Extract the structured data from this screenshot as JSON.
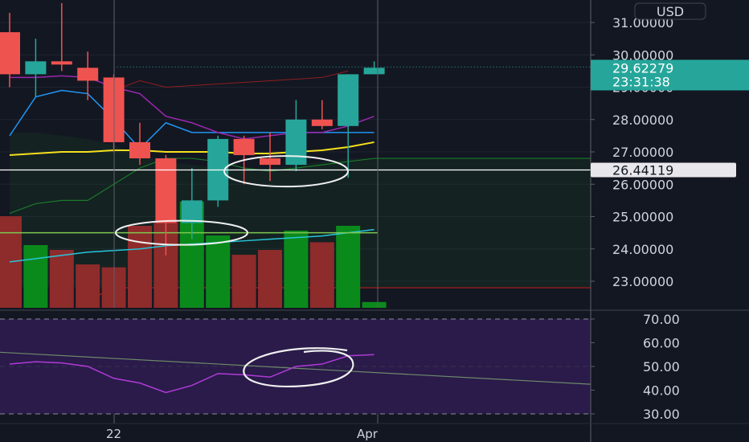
{
  "currency_label": "USD",
  "current_price_label": "29.62279",
  "countdown_label": "23:31:38",
  "crosshair_price_label": "26.44119",
  "colors": {
    "background": "#131722",
    "up": "#26a69a",
    "down": "#ef5350",
    "volume_up": "#0b8a1c",
    "volume_down": "#8e2b2b",
    "ma_yellow": "#f5e01e",
    "ma_cyan": "#26c6da",
    "ma_blue": "#2196f3",
    "ma_purple": "#9c27b0",
    "rsi_line": "#b03ad6",
    "rsi_band": "#2a1b4a"
  },
  "chart_data": [
    {
      "type": "candlestick",
      "y_axis_ticks": [
        31.0,
        30.0,
        29.0,
        28.0,
        27.0,
        26.0,
        25.0,
        24.0,
        23.0
      ],
      "y_axis_tick_labels": [
        "31.00000",
        "30.00000",
        "29.00000",
        "28.00000",
        "27.00000",
        "26.00000",
        "25.00000",
        "24.00000",
        "23.00000"
      ],
      "ylim": [
        22.2,
        31.6
      ],
      "x_axis_labels": [
        "22",
        "Apr"
      ],
      "current_price": 29.62279,
      "crosshair_price": 26.44119,
      "horizontal_level": 24.5,
      "candles": [
        {
          "open": 30.7,
          "high": 31.3,
          "low": 29.0,
          "close": 29.4
        },
        {
          "open": 29.4,
          "high": 30.5,
          "low": 28.7,
          "close": 29.8
        },
        {
          "open": 29.8,
          "high": 31.6,
          "low": 29.5,
          "close": 29.7
        },
        {
          "open": 29.6,
          "high": 30.1,
          "low": 28.6,
          "close": 29.2
        },
        {
          "open": 29.3,
          "high": 29.4,
          "low": 27.0,
          "close": 27.3
        },
        {
          "open": 27.3,
          "high": 27.9,
          "low": 26.6,
          "close": 26.8
        },
        {
          "open": 26.8,
          "high": 26.9,
          "low": 23.8,
          "close": 24.8
        },
        {
          "open": 24.8,
          "high": 26.5,
          "low": 24.3,
          "close": 25.5
        },
        {
          "open": 25.5,
          "high": 27.5,
          "low": 25.3,
          "close": 27.4
        },
        {
          "open": 27.4,
          "high": 27.5,
          "low": 26.0,
          "close": 26.9
        },
        {
          "open": 26.8,
          "high": 27.6,
          "low": 26.1,
          "close": 26.6
        },
        {
          "open": 26.6,
          "high": 28.6,
          "low": 26.4,
          "close": 28.0
        },
        {
          "open": 28.0,
          "high": 28.6,
          "low": 27.7,
          "close": 27.8
        },
        {
          "open": 27.8,
          "high": 29.4,
          "low": 26.2,
          "close": 29.4
        },
        {
          "open": 29.4,
          "high": 29.8,
          "low": 29.4,
          "close": 29.6
        }
      ],
      "volumes": [
        95,
        65,
        60,
        45,
        42,
        85,
        90,
        110,
        75,
        55,
        60,
        80,
        68,
        85,
        6
      ],
      "moving_averages": [
        {
          "color": "yellow",
          "values": [
            26.9,
            26.95,
            27.0,
            27.0,
            27.05,
            27.05,
            27.0,
            27.0,
            27.0,
            26.95,
            26.95,
            27.0,
            27.05,
            27.15,
            27.3
          ]
        },
        {
          "color": "cyan",
          "values": [
            23.6,
            23.7,
            23.8,
            23.9,
            23.95,
            24.0,
            24.1,
            24.15,
            24.2,
            24.25,
            24.3,
            24.35,
            24.4,
            24.5,
            24.6
          ]
        },
        {
          "color": "blue",
          "values": [
            27.5,
            28.7,
            28.9,
            28.8,
            28.0,
            27.1,
            27.9,
            27.6,
            27.6,
            27.6,
            27.6,
            27.6,
            27.6,
            27.6,
            27.6
          ]
        },
        {
          "color": "purple",
          "values": [
            29.3,
            29.3,
            29.35,
            29.3,
            29.0,
            28.8,
            28.1,
            27.9,
            27.6,
            27.4,
            27.5,
            27.6,
            27.6,
            27.8,
            28.1
          ]
        }
      ],
      "annotations": [
        "ellipse around candles 6-8 at 24.5",
        "ellipse around candles 9-12 near 26.4"
      ]
    },
    {
      "type": "line",
      "title": "",
      "y_axis_ticks": [
        70.0,
        60.0,
        50.0,
        40.0,
        30.0
      ],
      "y_axis_tick_labels": [
        "70.00",
        "60.00",
        "50.00",
        "40.00",
        "30.00"
      ],
      "ylim": [
        26.0,
        71.5
      ],
      "band": [
        30.0,
        70.0
      ],
      "series": [
        {
          "values": [
            51.0,
            52.0,
            51.5,
            50.0,
            45.0,
            43.0,
            39.0,
            42.0,
            47.0,
            46.5,
            45.5,
            50.0,
            51.0,
            54.5,
            55.0
          ]
        }
      ],
      "trendline": {
        "start": 56.0,
        "end": 42.5
      },
      "annotations": [
        "ellipse around RSI values near 50"
      ]
    }
  ]
}
